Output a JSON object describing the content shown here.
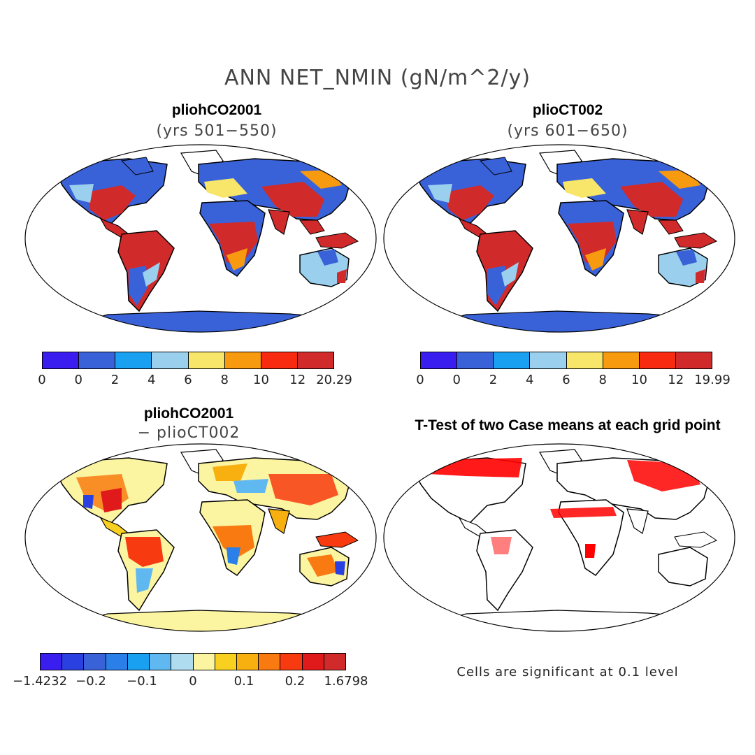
{
  "title": "ANN NET_NMIN (gN/m^2/y)",
  "panels": {
    "a": {
      "title": "pliohCO2001",
      "subtitle": "(yrs 501−550)"
    },
    "b": {
      "title": "plioCT002",
      "subtitle": "(yrs 601−650)"
    },
    "c": {
      "title": "pliohCO2001",
      "subtitle": "− plioCT002"
    },
    "d": {
      "title": "T-Test of two Case means at each grid point",
      "note": "Cells are significant at 0.1 level"
    }
  },
  "colorbars": {
    "a": {
      "colors": [
        "#3a1ef0",
        "#3a62d8",
        "#1aa0f0",
        "#9ad0ee",
        "#f8e66a",
        "#f89a10",
        "#f82a10",
        "#d02a2a"
      ],
      "ticks": [
        "0",
        "0",
        "2",
        "4",
        "6",
        "8",
        "10",
        "12",
        "20.29"
      ]
    },
    "b": {
      "colors": [
        "#3a1ef0",
        "#3a62d8",
        "#1aa0f0",
        "#9ad0ee",
        "#f8e66a",
        "#f89a10",
        "#f82a10",
        "#d02a2a"
      ],
      "ticks": [
        "0",
        "0",
        "2",
        "4",
        "6",
        "8",
        "10",
        "12",
        "19.99"
      ]
    },
    "c": {
      "colors": [
        "#3a1ef0",
        "#2a40e0",
        "#3a62d8",
        "#2a80e8",
        "#1aa0f0",
        "#60b8f0",
        "#b0dcf0",
        "#fbf4a0",
        "#f8d020",
        "#f8b010",
        "#f87a10",
        "#f83a10",
        "#e01a1a",
        "#d02a2a"
      ],
      "ticks": [
        "−1.4232",
        "−0.2",
        "−0.1",
        "0",
        "0.1",
        "0.2",
        "1.6798"
      ]
    }
  },
  "palette": {
    "blue": "#3a62d8",
    "light_blue": "#9ad0ee",
    "yellow": "#f8e66a",
    "orange": "#f89a10",
    "red": "#d02a2a",
    "pale_yellow": "#fbf4a0",
    "sig_red": "#ff0000"
  }
}
